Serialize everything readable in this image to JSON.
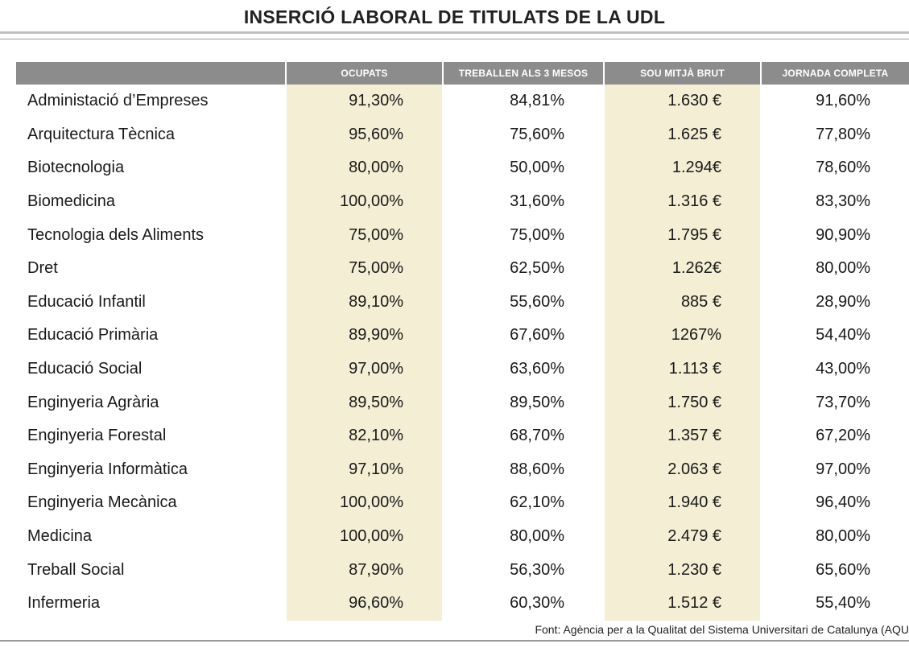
{
  "title": "INSERCIÓ LABORAL DE TITULATS DE LA UDL",
  "colors": {
    "header_bg": "#8c8c8c",
    "tint": "#f3eed4"
  },
  "chart_data": {
    "type": "table",
    "title": "INSERCIÓ LABORAL DE TITULATS DE LA UDL",
    "columns": [
      "",
      "OCUPATS",
      "TREBALLEN ALS 3 MESOS",
      "SOU MITJÀ BRUT",
      "JORNADA COMPLETA"
    ],
    "rows": [
      [
        "Administació d’Empreses",
        "91,30%",
        "84,81%",
        "1.630 €",
        "91,60%"
      ],
      [
        "Arquitectura Tècnica",
        "95,60%",
        "75,60%",
        "1.625 €",
        "77,80%"
      ],
      [
        "Biotecnologia",
        "80,00%",
        "50,00%",
        "1.294€",
        "78,60%"
      ],
      [
        "Biomedicina",
        "100,00%",
        "31,60%",
        "1.316 €",
        "83,30%"
      ],
      [
        "Tecnologia dels Aliments",
        "75,00%",
        "75,00%",
        "1.795 €",
        "90,90%"
      ],
      [
        "Dret",
        "75,00%",
        "62,50%",
        "1.262€",
        "80,00%"
      ],
      [
        "Educació Infantil",
        "89,10%",
        "55,60%",
        "885 €",
        "28,90%"
      ],
      [
        "Educació Primària",
        "89,90%",
        "67,60%",
        "1267%",
        "54,40%"
      ],
      [
        "Educació Social",
        "97,00%",
        "63,60%",
        "1.113 €",
        "43,00%"
      ],
      [
        "Enginyeria Agrària",
        "89,50%",
        "89,50%",
        "1.750 €",
        "73,70%"
      ],
      [
        "Enginyeria Forestal",
        "82,10%",
        "68,70%",
        "1.357 €",
        "67,20%"
      ],
      [
        "Enginyeria Informàtica",
        "97,10%",
        "88,60%",
        "2.063 €",
        "97,00%"
      ],
      [
        "Enginyeria Mecànica",
        "100,00%",
        "62,10%",
        "1.940 €",
        "96,40%"
      ],
      [
        "Medicina",
        "100,00%",
        "80,00%",
        "2.479 €",
        "80,00%"
      ],
      [
        "Treball Social",
        "87,90%",
        "56,30%",
        "1.230 €",
        "65,60%"
      ],
      [
        "Infermeria",
        "96,60%",
        "60,30%",
        "1.512 €",
        "55,40%"
      ]
    ]
  },
  "source": "Font: Agència per a la Qualitat del Sistema Universitari de Catalunya (AQU"
}
